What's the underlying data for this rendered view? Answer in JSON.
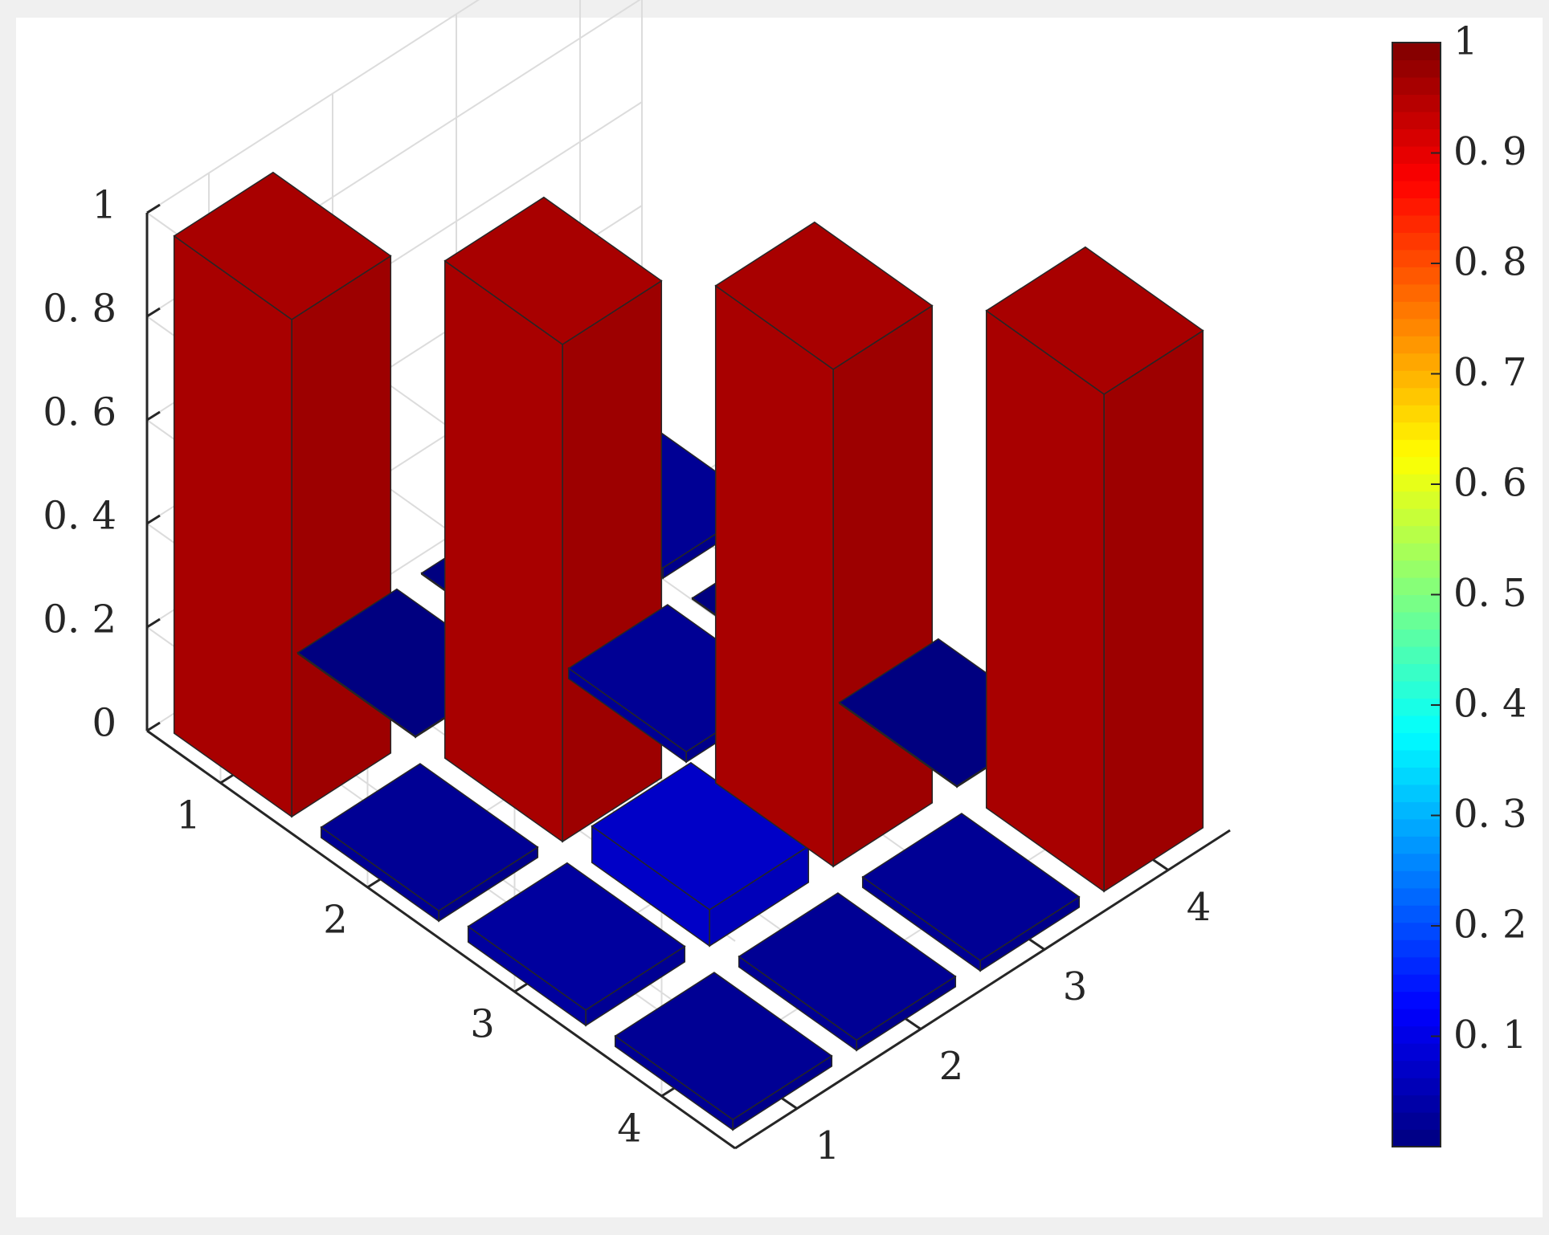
{
  "chart_data": {
    "type": "bar3",
    "rows": [
      "1",
      "2",
      "3",
      "4"
    ],
    "cols": [
      "1",
      "2",
      "3",
      "4"
    ],
    "values": [
      [
        0.96,
        0.0,
        0.0,
        0.02
      ],
      [
        0.02,
        0.96,
        0.02,
        0.0
      ],
      [
        0.03,
        0.07,
        0.96,
        0.0
      ],
      [
        0.02,
        0.02,
        0.02,
        0.96
      ]
    ],
    "zlim": [
      0,
      1
    ],
    "zticks": [
      0,
      0.2,
      0.4,
      0.6,
      0.8,
      1
    ],
    "ztick_labels": [
      "0",
      "0. 2",
      "0. 4",
      "0. 6",
      "0. 8",
      "1"
    ],
    "grid": true,
    "colormap": "jet",
    "colorbar": {
      "range": [
        0.0,
        1.0
      ],
      "ticks": [
        0.1,
        0.2,
        0.3,
        0.4,
        0.5,
        0.6,
        0.7,
        0.8,
        0.9,
        1
      ],
      "tick_labels": [
        "0. 1",
        "0. 2",
        "0. 3",
        "0. 4",
        "0. 5",
        "0. 6",
        "0. 7",
        "0. 8",
        "0. 9",
        "1"
      ],
      "position": "right"
    },
    "colors": {
      "figure_background": "#f0f0f0",
      "axes_background": "#ffffff",
      "high_bar": "#800000",
      "low_bar": "#00008f"
    }
  }
}
